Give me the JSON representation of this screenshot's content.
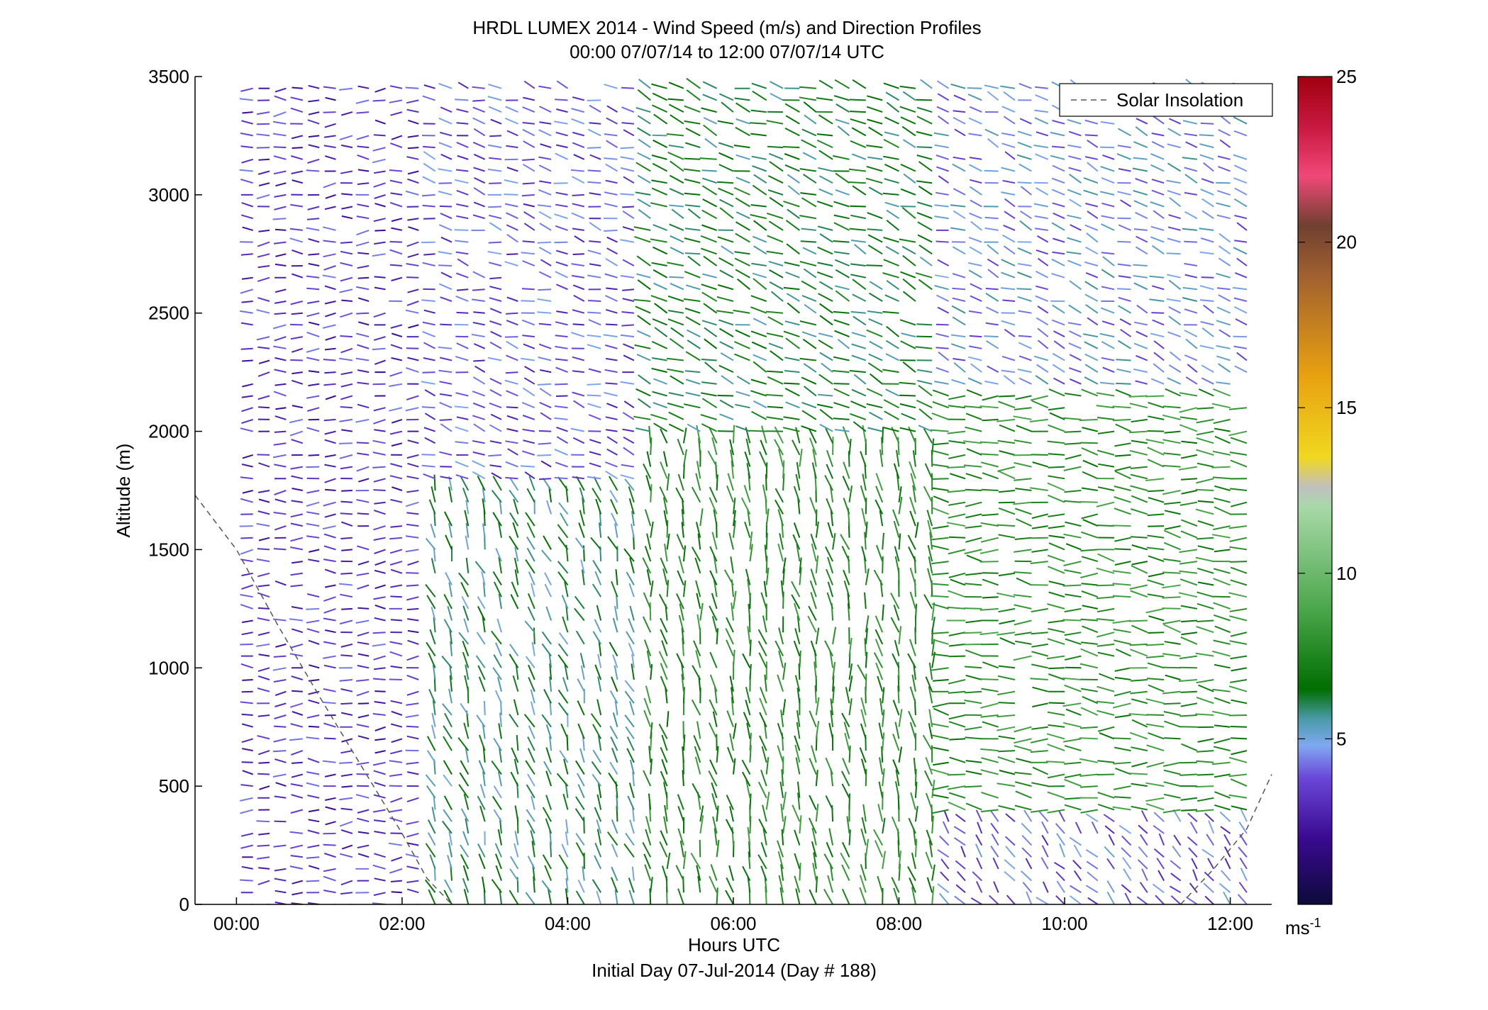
{
  "chart_data": {
    "type": "wind_barb_profile",
    "title": "HRDL LUMEX 2014 - Wind Speed (m/s) and Direction Profiles",
    "subtitle": "00:00 07/07/14 to 12:00 07/07/14  UTC",
    "xlabel": "Hours UTC",
    "xlabel2": "Initial Day 07-Jul-2014 (Day # 188)",
    "ylabel": "Altitude (m)",
    "x_ticks": [
      "00:00",
      "02:00",
      "04:00",
      "06:00",
      "08:00",
      "10:00",
      "12:00"
    ],
    "x_tick_hours": [
      0,
      2,
      4,
      6,
      8,
      10,
      12
    ],
    "xlim_hours": [
      -0.5,
      12.5
    ],
    "y_ticks": [
      "0",
      "500",
      "1000",
      "1500",
      "2000",
      "2500",
      "3000",
      "3500"
    ],
    "y_tick_values": [
      0,
      500,
      1000,
      1500,
      2000,
      2500,
      3000,
      3500
    ],
    "ylim": [
      0,
      3500
    ],
    "colorbar": {
      "ticks": [
        "5",
        "10",
        "15",
        "20",
        "25"
      ],
      "tick_values": [
        5,
        10,
        15,
        20,
        25
      ],
      "range": [
        0,
        25
      ],
      "unit": "ms",
      "unit_exponent": "-1",
      "colors": [
        "#0d0a3a",
        "#3a0a90",
        "#6a46d8",
        "#7fa8f0",
        "#4a9aa8",
        "#006e00",
        "#4ea84e",
        "#a8d8a8",
        "#c0c0c0",
        "#f0d820",
        "#e8a010",
        "#a06030",
        "#704030",
        "#f04878",
        "#c81840",
        "#a00010"
      ],
      "color_stops": [
        0,
        2,
        3.8,
        4.8,
        5.6,
        6.5,
        9,
        12,
        12.6,
        13.5,
        16,
        19,
        20.5,
        22,
        23.5,
        25
      ]
    },
    "legend": {
      "label": "Solar Insolation",
      "position": "top-right",
      "style": "dashed"
    },
    "solar_insolation": {
      "hours": [
        -0.5,
        0,
        0.5,
        1,
        1.5,
        2,
        2.3,
        2.6
      ],
      "altitude": [
        1730,
        1500,
        1180,
        880,
        590,
        300,
        110,
        0
      ],
      "hours_end": [
        11.4,
        11.8,
        12.2,
        12.5
      ],
      "altitude_end": [
        0,
        150,
        320,
        550
      ]
    },
    "profiles": {
      "time_step_hours": 0.2,
      "start_hours": 0.2,
      "end_hours": 12.2,
      "altitude_step_m": 50,
      "regimes": [
        {
          "hours": [
            0,
            2.2
          ],
          "alt": [
            0,
            3500
          ],
          "speed": 3.2,
          "dir_deg": 270
        },
        {
          "hours": [
            2.2,
            5.0
          ],
          "alt": [
            0,
            1800
          ],
          "speed": 6.0,
          "dir_deg": 340
        },
        {
          "hours": [
            2.2,
            5.0
          ],
          "alt": [
            1800,
            3500
          ],
          "speed": 3.8,
          "dir_deg": 285
        },
        {
          "hours": [
            5.0,
            8.5
          ],
          "alt": [
            0,
            2000
          ],
          "speed": 7.5,
          "dir_deg": 350
        },
        {
          "hours": [
            5.0,
            8.5
          ],
          "alt": [
            2000,
            3500
          ],
          "speed": 6.5,
          "dir_deg": 290
        },
        {
          "hours": [
            8.5,
            12.2
          ],
          "alt": [
            0,
            400
          ],
          "speed": 4.0,
          "dir_deg": 320
        },
        {
          "hours": [
            8.5,
            12.2
          ],
          "alt": [
            400,
            2200
          ],
          "speed": 7.8,
          "dir_deg": 275
        },
        {
          "hours": [
            8.5,
            12.2
          ],
          "alt": [
            2200,
            3500
          ],
          "speed": 4.6,
          "dir_deg": 290
        }
      ]
    }
  }
}
